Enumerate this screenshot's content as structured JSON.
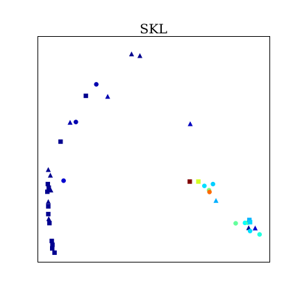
{
  "chart_data": {
    "type": "scatter",
    "title": "SKL",
    "xlabel": "",
    "ylabel": "",
    "xlim": [
      0,
      1
    ],
    "ylim": [
      0,
      1
    ],
    "grid": false,
    "legend": "none",
    "axes_ticks": false,
    "colormap": "jet",
    "points": [
      {
        "x": 0.404,
        "y": 0.921,
        "marker": "triangle",
        "color": "#00008f"
      },
      {
        "x": 0.44,
        "y": 0.914,
        "marker": "triangle",
        "color": "#00008f"
      },
      {
        "x": 0.252,
        "y": 0.788,
        "marker": "circle",
        "color": "#0000af"
      },
      {
        "x": 0.207,
        "y": 0.737,
        "marker": "square",
        "color": "#00008f"
      },
      {
        "x": 0.301,
        "y": 0.733,
        "marker": "triangle",
        "color": "#0000b0"
      },
      {
        "x": 0.139,
        "y": 0.618,
        "marker": "triangle",
        "color": "#0000af"
      },
      {
        "x": 0.164,
        "y": 0.621,
        "marker": "circle",
        "color": "#0000af"
      },
      {
        "x": 0.098,
        "y": 0.534,
        "marker": "square",
        "color": "#00008f"
      },
      {
        "x": 0.657,
        "y": 0.612,
        "marker": "triangle",
        "color": "#0000bf"
      },
      {
        "x": 0.045,
        "y": 0.409,
        "marker": "triangle",
        "color": "#00008f"
      },
      {
        "x": 0.054,
        "y": 0.384,
        "marker": "triangle",
        "color": "#00008f"
      },
      {
        "x": 0.111,
        "y": 0.361,
        "marker": "circle",
        "color": "#0000cf"
      },
      {
        "x": 0.043,
        "y": 0.346,
        "marker": "square",
        "color": "#00008f"
      },
      {
        "x": 0.047,
        "y": 0.33,
        "marker": "square",
        "color": "#00008f"
      },
      {
        "x": 0.041,
        "y": 0.312,
        "marker": "square",
        "color": "#00008f"
      },
      {
        "x": 0.056,
        "y": 0.318,
        "marker": "triangle",
        "color": "#00008f"
      },
      {
        "x": 0.045,
        "y": 0.267,
        "marker": "triangle",
        "color": "#00008f"
      },
      {
        "x": 0.045,
        "y": 0.247,
        "marker": "square",
        "color": "#00008f"
      },
      {
        "x": 0.045,
        "y": 0.213,
        "marker": "square",
        "color": "#00008f"
      },
      {
        "x": 0.047,
        "y": 0.191,
        "marker": "triangle",
        "color": "#00008f"
      },
      {
        "x": 0.05,
        "y": 0.173,
        "marker": "square",
        "color": "#00008f"
      },
      {
        "x": 0.06,
        "y": 0.094,
        "marker": "square",
        "color": "#00008f"
      },
      {
        "x": 0.063,
        "y": 0.077,
        "marker": "square",
        "color": "#00008f"
      },
      {
        "x": 0.062,
        "y": 0.061,
        "marker": "square",
        "color": "#00008f"
      },
      {
        "x": 0.072,
        "y": 0.042,
        "marker": "square",
        "color": "#00008f"
      },
      {
        "x": 0.655,
        "y": 0.357,
        "marker": "square",
        "color": "#800000"
      },
      {
        "x": 0.692,
        "y": 0.357,
        "marker": "square",
        "color": "#d4ff23"
      },
      {
        "x": 0.718,
        "y": 0.338,
        "marker": "circle",
        "color": "#00dfff"
      },
      {
        "x": 0.755,
        "y": 0.346,
        "marker": "circle",
        "color": "#00cfff"
      },
      {
        "x": 0.738,
        "y": 0.319,
        "marker": "circle",
        "color": "#7fff80"
      },
      {
        "x": 0.74,
        "y": 0.311,
        "marker": "circle",
        "color": "#ff6a00"
      },
      {
        "x": 0.768,
        "y": 0.272,
        "marker": "triangle",
        "color": "#00afff"
      },
      {
        "x": 0.853,
        "y": 0.172,
        "marker": "circle",
        "color": "#63ff9c"
      },
      {
        "x": 0.893,
        "y": 0.174,
        "marker": "circle",
        "color": "#00ffff"
      },
      {
        "x": 0.905,
        "y": 0.175,
        "marker": "circle",
        "color": "#40ffbf"
      },
      {
        "x": 0.912,
        "y": 0.187,
        "marker": "square",
        "color": "#00b4ff"
      },
      {
        "x": 0.915,
        "y": 0.177,
        "marker": "square",
        "color": "#00d4ff"
      },
      {
        "x": 0.909,
        "y": 0.151,
        "marker": "triangle",
        "color": "#00008f"
      },
      {
        "x": 0.937,
        "y": 0.15,
        "marker": "triangle",
        "color": "#0000cf"
      },
      {
        "x": 0.956,
        "y": 0.123,
        "marker": "circle",
        "color": "#20ffdf"
      },
      {
        "x": 0.915,
        "y": 0.138,
        "marker": "circle",
        "color": "#00dfff"
      }
    ]
  }
}
